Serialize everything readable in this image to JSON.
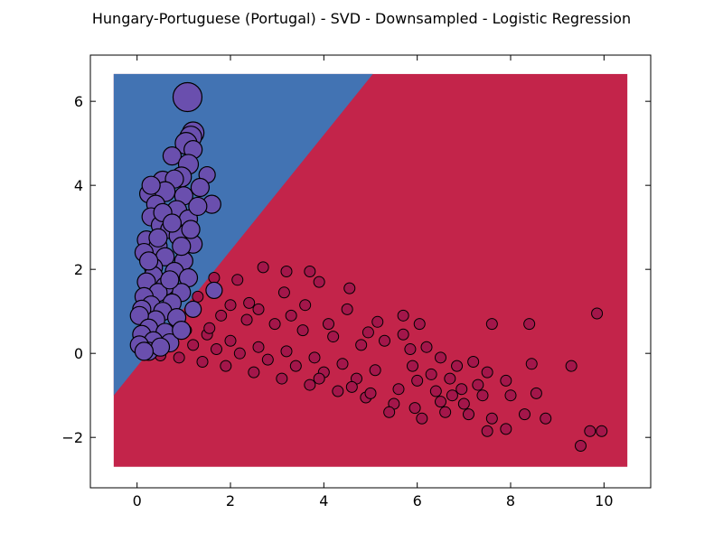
{
  "chart_data": {
    "type": "scatter",
    "title": "Hungary-Portuguese (Portugal) - SVD - Downsampled - Logistic Regression",
    "xlabel": "",
    "ylabel": "",
    "xlim": [
      -1,
      11
    ],
    "ylim": [
      -3.2,
      7.1
    ],
    "xticks": [
      0,
      2,
      4,
      6,
      8,
      10
    ],
    "yticks": [
      -2,
      0,
      2,
      4,
      6
    ],
    "xtick_labels": [
      "0",
      "2",
      "4",
      "6",
      "8",
      "10"
    ],
    "ytick_labels": [
      "−2",
      "0",
      "2",
      "4",
      "6"
    ],
    "grid": false,
    "decision_regions": {
      "extent": {
        "x": [
          -0.5,
          10.5
        ],
        "y": [
          -2.7,
          6.65
        ]
      },
      "boundary": [
        [
          -0.5,
          -1.0
        ],
        [
          5.05,
          6.65
        ]
      ],
      "class_a_color": "#4273B3",
      "class_b_color": "#C3244A"
    },
    "series": [
      {
        "color": "#6A4FAE",
        "points": [
          [
            1.08,
            6.1
          ],
          [
            1.2,
            5.25
          ],
          [
            1.15,
            5.15
          ],
          [
            1.05,
            5.0
          ],
          [
            0.75,
            4.7
          ],
          [
            1.2,
            4.85
          ],
          [
            1.1,
            4.5
          ],
          [
            0.55,
            4.1
          ],
          [
            0.95,
            4.2
          ],
          [
            1.5,
            4.25
          ],
          [
            0.8,
            4.15
          ],
          [
            1.35,
            3.95
          ],
          [
            0.25,
            3.8
          ],
          [
            0.6,
            3.85
          ],
          [
            0.4,
            3.55
          ],
          [
            1.0,
            3.75
          ],
          [
            1.6,
            3.55
          ],
          [
            0.85,
            3.4
          ],
          [
            0.3,
            3.25
          ],
          [
            1.1,
            3.2
          ],
          [
            0.5,
            3.05
          ],
          [
            0.7,
            2.95
          ],
          [
            0.2,
            2.7
          ],
          [
            0.9,
            2.8
          ],
          [
            0.45,
            2.55
          ],
          [
            1.2,
            2.6
          ],
          [
            0.6,
            2.3
          ],
          [
            0.15,
            2.4
          ],
          [
            1.0,
            2.2
          ],
          [
            0.35,
            2.05
          ],
          [
            0.8,
            1.95
          ],
          [
            0.35,
            1.85
          ],
          [
            1.1,
            1.8
          ],
          [
            0.2,
            1.7
          ],
          [
            0.6,
            1.6
          ],
          [
            0.45,
            1.45
          ],
          [
            0.95,
            1.45
          ],
          [
            0.15,
            1.35
          ],
          [
            0.3,
            1.15
          ],
          [
            0.75,
            1.2
          ],
          [
            0.55,
            1.0
          ],
          [
            0.1,
            1.05
          ],
          [
            0.4,
            0.8
          ],
          [
            0.85,
            0.85
          ],
          [
            0.05,
            0.9
          ],
          [
            0.25,
            0.6
          ],
          [
            0.6,
            0.5
          ],
          [
            0.1,
            0.45
          ],
          [
            0.35,
            0.3
          ],
          [
            0.7,
            0.25
          ],
          [
            0.05,
            0.2
          ],
          [
            0.25,
            0.05
          ],
          [
            1.2,
            1.05
          ],
          [
            1.65,
            1.5
          ],
          [
            0.3,
            4.0
          ],
          [
            0.55,
            3.35
          ],
          [
            0.75,
            3.1
          ],
          [
            0.95,
            2.55
          ],
          [
            1.3,
            3.5
          ],
          [
            1.15,
            2.95
          ],
          [
            0.45,
            2.75
          ],
          [
            0.25,
            2.2
          ],
          [
            0.7,
            1.75
          ],
          [
            0.95,
            0.55
          ],
          [
            0.5,
            0.15
          ],
          [
            0.15,
            0.05
          ]
        ],
        "sizes": [
          16,
          12,
          12,
          12,
          10,
          10,
          11,
          11,
          11,
          9,
          10,
          10,
          10,
          11,
          10,
          10,
          10,
          11,
          10,
          10,
          10,
          10,
          10,
          11,
          10,
          10,
          10,
          10,
          10,
          10,
          10,
          10,
          10,
          10,
          10,
          10,
          10,
          10,
          10,
          10,
          10,
          10,
          10,
          10,
          10,
          10,
          10,
          10,
          10,
          10,
          10,
          10,
          9,
          9,
          10,
          10,
          10,
          10,
          10,
          10,
          10,
          10,
          10,
          10,
          10,
          10
        ]
      },
      {
        "color": "#A3164A",
        "points": [
          [
            2.7,
            2.05
          ],
          [
            3.7,
            1.95
          ],
          [
            3.2,
            1.95
          ],
          [
            2.15,
            1.75
          ],
          [
            1.65,
            1.8
          ],
          [
            3.9,
            1.7
          ],
          [
            4.55,
            1.55
          ],
          [
            3.15,
            1.45
          ],
          [
            1.3,
            1.35
          ],
          [
            2.4,
            1.2
          ],
          [
            3.6,
            1.15
          ],
          [
            4.5,
            1.05
          ],
          [
            5.7,
            0.9
          ],
          [
            6.05,
            0.7
          ],
          [
            7.6,
            0.7
          ],
          [
            8.4,
            0.7
          ],
          [
            9.85,
            0.95
          ],
          [
            5.15,
            0.75
          ],
          [
            5.7,
            0.45
          ],
          [
            6.2,
            0.15
          ],
          [
            6.5,
            -0.1
          ],
          [
            6.85,
            -0.3
          ],
          [
            7.2,
            -0.2
          ],
          [
            7.5,
            -0.45
          ],
          [
            7.9,
            -0.65
          ],
          [
            8.45,
            -0.25
          ],
          [
            9.3,
            -0.3
          ],
          [
            8.0,
            -1.0
          ],
          [
            8.55,
            -0.95
          ],
          [
            9.7,
            -1.85
          ],
          [
            9.95,
            -1.85
          ],
          [
            9.5,
            -2.2
          ],
          [
            8.75,
            -1.55
          ],
          [
            8.3,
            -1.45
          ],
          [
            7.9,
            -1.8
          ],
          [
            7.6,
            -1.55
          ],
          [
            7.5,
            -1.85
          ],
          [
            7.1,
            -1.45
          ],
          [
            6.6,
            -1.4
          ],
          [
            6.95,
            -0.85
          ],
          [
            7.3,
            -0.75
          ],
          [
            6.5,
            -1.15
          ],
          [
            5.95,
            -1.3
          ],
          [
            5.5,
            -1.2
          ],
          [
            4.9,
            -1.05
          ],
          [
            4.3,
            -0.9
          ],
          [
            3.7,
            -0.75
          ],
          [
            3.1,
            -0.6
          ],
          [
            2.5,
            -0.45
          ],
          [
            1.9,
            -0.3
          ],
          [
            1.4,
            -0.2
          ],
          [
            0.9,
            -0.1
          ],
          [
            0.5,
            -0.05
          ],
          [
            5.3,
            0.3
          ],
          [
            4.8,
            0.2
          ],
          [
            4.2,
            0.4
          ],
          [
            3.55,
            0.55
          ],
          [
            2.95,
            0.7
          ],
          [
            2.35,
            0.8
          ],
          [
            1.8,
            0.9
          ],
          [
            5.1,
            -0.4
          ],
          [
            4.4,
            -0.25
          ],
          [
            3.8,
            -0.1
          ],
          [
            3.2,
            0.05
          ],
          [
            2.6,
            0.15
          ],
          [
            2.0,
            0.3
          ],
          [
            1.5,
            0.45
          ],
          [
            6.0,
            -0.65
          ],
          [
            5.6,
            -0.85
          ],
          [
            6.4,
            -0.9
          ],
          [
            4.7,
            -0.6
          ],
          [
            4.0,
            -0.45
          ],
          [
            3.4,
            -0.3
          ],
          [
            2.8,
            -0.15
          ],
          [
            2.2,
            0.0
          ],
          [
            1.7,
            0.1
          ],
          [
            1.2,
            0.2
          ],
          [
            5.9,
            -0.3
          ],
          [
            6.3,
            -0.5
          ],
          [
            6.7,
            -0.6
          ],
          [
            7.4,
            -1.0
          ],
          [
            7.0,
            -1.2
          ],
          [
            6.1,
            -1.55
          ],
          [
            5.4,
            -1.4
          ],
          [
            5.85,
            0.1
          ],
          [
            4.95,
            0.5
          ],
          [
            4.1,
            0.7
          ],
          [
            3.3,
            0.9
          ],
          [
            2.6,
            1.05
          ],
          [
            2.0,
            1.15
          ],
          [
            4.6,
            -0.8
          ],
          [
            3.9,
            -0.6
          ],
          [
            1.55,
            0.6
          ],
          [
            1.05,
            0.55
          ],
          [
            6.75,
            -1.0
          ],
          [
            5.0,
            -0.95
          ]
        ],
        "size": 6
      }
    ]
  }
}
